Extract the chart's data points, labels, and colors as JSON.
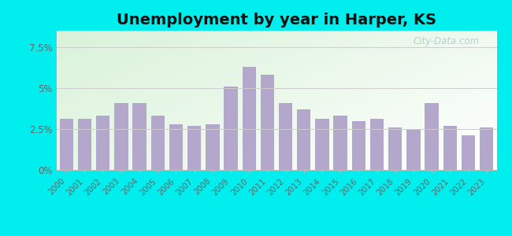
{
  "title": "Unemployment by year in Harper, KS",
  "years": [
    2000,
    2001,
    2002,
    2003,
    2004,
    2005,
    2006,
    2007,
    2008,
    2009,
    2010,
    2011,
    2012,
    2013,
    2014,
    2015,
    2016,
    2017,
    2018,
    2019,
    2020,
    2021,
    2022,
    2023
  ],
  "values": [
    3.1,
    3.1,
    3.3,
    4.1,
    4.1,
    3.3,
    2.8,
    2.7,
    2.8,
    5.1,
    6.3,
    5.8,
    4.1,
    3.7,
    3.1,
    3.3,
    3.0,
    3.1,
    2.6,
    2.5,
    4.1,
    2.7,
    2.1,
    2.6
  ],
  "bar_color": "#b3a8cc",
  "background_outer": "#00eeee",
  "title_fontsize": 14,
  "yticks": [
    0,
    2.5,
    5.0,
    7.5
  ],
  "ylim": [
    0,
    8.5
  ],
  "watermark": "City-Data.com",
  "grid_color": "#cccccc",
  "xlabel_color": "#666666",
  "ylabel_color": "#666666"
}
